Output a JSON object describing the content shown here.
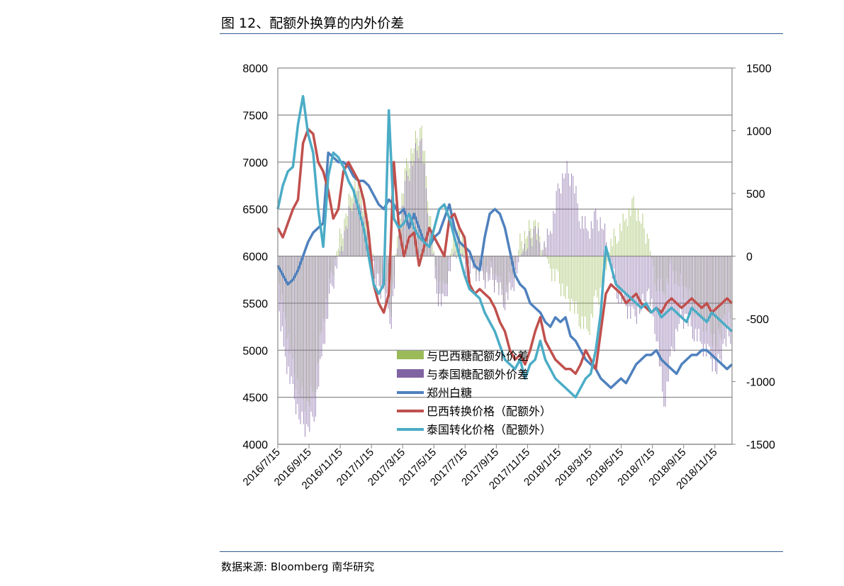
{
  "header": {
    "title": "图 12、配额外换算的内外价差"
  },
  "footer": {
    "source": "数据来源: Bloomberg  南华研究"
  },
  "chart_data": {
    "type": "line",
    "y_left": {
      "min": 4000,
      "max": 8000,
      "ticks": [
        4000,
        4500,
        5000,
        5500,
        6000,
        6500,
        7000,
        7500,
        8000
      ]
    },
    "y_right": {
      "min": -1500,
      "max": 1500,
      "ticks": [
        -1500,
        -1000,
        -500,
        0,
        500,
        1000,
        1500
      ]
    },
    "x_ticks": [
      "2016/7/15",
      "2016/9/15",
      "2016/11/15",
      "2017/1/15",
      "2017/3/15",
      "2017/5/15",
      "2017/7/15",
      "2017/9/15",
      "2017/11/15",
      "2018/1/15",
      "2018/3/15",
      "2018/5/15",
      "2018/7/15",
      "2018/9/15",
      "2018/11/15"
    ],
    "grid": true,
    "legend_position": "bottom-center",
    "series": [
      {
        "name": "与巴西糖配额外价差",
        "kind": "bar",
        "axis": "right",
        "color": "#9bbb59",
        "x": [
          0,
          15,
          30,
          45,
          60,
          75,
          90,
          105,
          120,
          135,
          150,
          165,
          180,
          195,
          210,
          225,
          240,
          255,
          270,
          285,
          300,
          315,
          330,
          345,
          360,
          375,
          390,
          405,
          420,
          435,
          450,
          465,
          480,
          495,
          510,
          525,
          540,
          555,
          570,
          585,
          600,
          615,
          630,
          645,
          660,
          675,
          690,
          705,
          720,
          735,
          750,
          765,
          780,
          795,
          810,
          825,
          840,
          855,
          870,
          885,
          900
        ],
        "values": [
          -200,
          -500,
          -900,
          -1100,
          -1200,
          -1000,
          -500,
          -200,
          100,
          300,
          600,
          500,
          200,
          -100,
          -200,
          -400,
          300,
          700,
          900,
          1000,
          400,
          -200,
          -300,
          100,
          200,
          0,
          -50,
          -150,
          -100,
          -200,
          -300,
          -150,
          100,
          200,
          250,
          100,
          -100,
          -200,
          -300,
          -400,
          -500,
          -600,
          -350,
          -250,
          100,
          200,
          300,
          400,
          300,
          100,
          -200,
          -300,
          -100,
          -200,
          -300,
          -400,
          -500,
          -600,
          -700,
          -500,
          -400
        ]
      },
      {
        "name": "与泰国糖配额外价差",
        "kind": "bar",
        "axis": "right",
        "color": "#8064a2",
        "x": [
          0,
          15,
          30,
          45,
          60,
          75,
          90,
          105,
          120,
          135,
          150,
          165,
          180,
          195,
          210,
          225,
          240,
          255,
          270,
          285,
          300,
          315,
          330,
          345,
          360,
          375,
          390,
          405,
          420,
          435,
          450,
          465,
          480,
          495,
          510,
          525,
          540,
          555,
          570,
          585,
          600,
          615,
          630,
          645,
          660,
          675,
          690,
          705,
          720,
          735,
          750,
          765,
          780,
          795,
          810,
          825,
          840,
          855,
          870,
          885,
          900
        ],
        "values": [
          -400,
          -800,
          -1100,
          -1300,
          -1400,
          -1200,
          -700,
          -300,
          0,
          200,
          500,
          400,
          100,
          -200,
          -300,
          -500,
          200,
          600,
          800,
          900,
          300,
          -300,
          -400,
          0,
          100,
          -100,
          -100,
          -200,
          -150,
          -250,
          -350,
          -250,
          0,
          100,
          200,
          50,
          200,
          500,
          700,
          600,
          300,
          200,
          300,
          250,
          -100,
          -300,
          -400,
          -500,
          -400,
          -300,
          -600,
          -1200,
          -800,
          -500,
          -500,
          -600,
          -700,
          -800,
          -900,
          -700,
          -600
        ]
      },
      {
        "name": "郑州白糖",
        "kind": "line",
        "axis": "left",
        "color": "#4f81bd",
        "x": [
          0,
          10,
          20,
          30,
          40,
          50,
          60,
          70,
          80,
          90,
          100,
          110,
          120,
          130,
          140,
          150,
          160,
          170,
          180,
          190,
          200,
          210,
          220,
          230,
          240,
          250,
          260,
          270,
          280,
          290,
          300,
          310,
          320,
          330,
          340,
          350,
          360,
          370,
          380,
          390,
          400,
          410,
          420,
          430,
          440,
          450,
          460,
          470,
          480,
          490,
          500,
          510,
          520,
          530,
          540,
          550,
          560,
          570,
          580,
          590,
          600,
          610,
          620,
          630,
          640,
          650,
          660,
          670,
          680,
          690,
          700,
          710,
          720,
          730,
          740,
          750,
          760,
          770,
          780,
          790,
          800,
          810,
          820,
          830,
          840,
          850,
          860,
          870,
          880,
          890,
          900
        ],
        "values": [
          5900,
          5800,
          5700,
          5750,
          5850,
          6000,
          6150,
          6250,
          6300,
          6350,
          7100,
          7050,
          7000,
          7000,
          6950,
          6850,
          6800,
          6800,
          6750,
          6650,
          6550,
          6500,
          6600,
          6550,
          6450,
          6500,
          6300,
          6450,
          6300,
          6150,
          6100,
          6200,
          6250,
          6400,
          6550,
          6300,
          6150,
          6100,
          6050,
          5900,
          5850,
          6200,
          6450,
          6500,
          6450,
          6300,
          6050,
          5800,
          5700,
          5650,
          5500,
          5450,
          5400,
          5300,
          5250,
          5350,
          5300,
          5350,
          5150,
          5100,
          5000,
          4900,
          4850,
          4800,
          4700,
          4650,
          4600,
          4650,
          4700,
          4650,
          4750,
          4850,
          4900,
          4950,
          4950,
          5000,
          4900,
          4850,
          4800,
          4750,
          4850,
          4900,
          4950,
          4950,
          5000,
          5000,
          4950,
          4900,
          4850,
          4800,
          4850
        ]
      },
      {
        "name": "巴西转换价格（配额外）",
        "kind": "line",
        "axis": "left",
        "color": "#c0504d",
        "x": [
          0,
          10,
          20,
          30,
          40,
          50,
          60,
          70,
          80,
          90,
          100,
          110,
          120,
          130,
          140,
          150,
          160,
          170,
          180,
          190,
          200,
          210,
          220,
          230,
          240,
          250,
          260,
          270,
          280,
          290,
          300,
          310,
          320,
          330,
          340,
          350,
          360,
          370,
          380,
          390,
          400,
          410,
          420,
          430,
          440,
          450,
          460,
          470,
          480,
          490,
          500,
          510,
          520,
          530,
          540,
          550,
          560,
          570,
          580,
          590,
          600,
          610,
          620,
          630,
          640,
          650,
          660,
          670,
          680,
          690,
          700,
          710,
          720,
          730,
          740,
          750,
          760,
          770,
          780,
          790,
          800,
          810,
          820,
          830,
          840,
          850,
          860,
          870,
          880,
          890,
          900
        ],
        "values": [
          6300,
          6200,
          6350,
          6500,
          6600,
          7200,
          7350,
          7300,
          7000,
          6900,
          6700,
          6400,
          6500,
          6900,
          7000,
          6900,
          6800,
          6600,
          6250,
          5700,
          5500,
          5400,
          5600,
          7000,
          6300,
          6000,
          6200,
          6250,
          5900,
          6100,
          6300,
          6200,
          6100,
          6000,
          6400,
          6450,
          6300,
          6200,
          5700,
          5600,
          5650,
          5600,
          5550,
          5450,
          5300,
          5200,
          5000,
          4900,
          4950,
          4850,
          5000,
          5200,
          5350,
          5100,
          5000,
          4900,
          4850,
          4800,
          4800,
          4750,
          4850,
          5000,
          4900,
          4800,
          5200,
          5600,
          5700,
          5650,
          5600,
          5500,
          5550,
          5600,
          5500,
          5450,
          5400,
          5450,
          5400,
          5500,
          5550,
          5500,
          5450,
          5500,
          5550,
          5500,
          5450,
          5500,
          5400,
          5450,
          5500,
          5550,
          5500
        ]
      },
      {
        "name": "泰国转化价格（配额外）",
        "kind": "line",
        "axis": "left",
        "color": "#4bacc6",
        "x": [
          0,
          10,
          20,
          30,
          40,
          50,
          60,
          70,
          80,
          90,
          100,
          110,
          120,
          130,
          140,
          150,
          160,
          170,
          180,
          190,
          200,
          210,
          220,
          230,
          240,
          250,
          260,
          270,
          280,
          290,
          300,
          310,
          320,
          330,
          340,
          350,
          360,
          370,
          380,
          390,
          400,
          410,
          420,
          430,
          440,
          450,
          460,
          470,
          480,
          490,
          500,
          510,
          520,
          530,
          540,
          550,
          560,
          570,
          580,
          590,
          600,
          610,
          620,
          630,
          640,
          650,
          660,
          670,
          680,
          690,
          700,
          710,
          720,
          730,
          740,
          750,
          760,
          770,
          780,
          790,
          800,
          810,
          820,
          830,
          840,
          850,
          860,
          870,
          880,
          890,
          900
        ],
        "values": [
          6500,
          6750,
          6900,
          6950,
          7400,
          7700,
          7300,
          7100,
          6500,
          6100,
          6850,
          7100,
          7050,
          6950,
          6800,
          6700,
          6500,
          6300,
          6000,
          5700,
          5600,
          5700,
          7550,
          6400,
          6300,
          6350,
          6450,
          6300,
          6200,
          6150,
          6100,
          6300,
          6500,
          6550,
          6400,
          6200,
          6000,
          5800,
          5650,
          5600,
          5550,
          5400,
          5300,
          5200,
          5050,
          4900,
          4850,
          4800,
          4900,
          4700,
          4850,
          4900,
          5100,
          4900,
          4800,
          4700,
          4650,
          4600,
          4550,
          4500,
          4600,
          4700,
          4750,
          5000,
          5400,
          6100,
          5900,
          5700,
          5650,
          5600,
          5550,
          5500,
          5450,
          5500,
          5400,
          5450,
          5350,
          5400,
          5450,
          5400,
          5350,
          5300,
          5450,
          5400,
          5350,
          5300,
          5400,
          5350,
          5300,
          5250,
          5200
        ]
      }
    ]
  }
}
